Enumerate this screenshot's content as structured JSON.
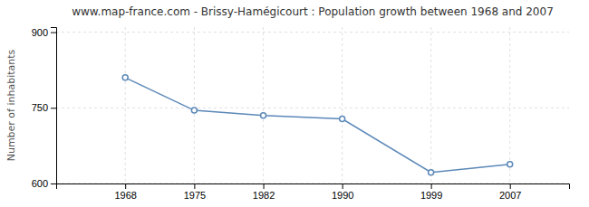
{
  "chart_data": {
    "type": "line",
    "title": "www.map-france.com - Brissy-Hamégicourt : Population growth between 1968 and 2007",
    "ylabel": "Number of inhabitants",
    "x": [
      1968,
      1975,
      1982,
      1990,
      1999,
      2007
    ],
    "values": [
      810,
      745,
      735,
      728,
      622,
      638
    ],
    "color": "#5b88b8",
    "marker": "circle",
    "xlim": [
      1961,
      2013
    ],
    "xticks": [
      1968,
      1975,
      1982,
      1990,
      1999,
      2007
    ],
    "ylim": [
      600,
      910
    ],
    "yticks": [
      600,
      750,
      900
    ],
    "grid": true
  }
}
